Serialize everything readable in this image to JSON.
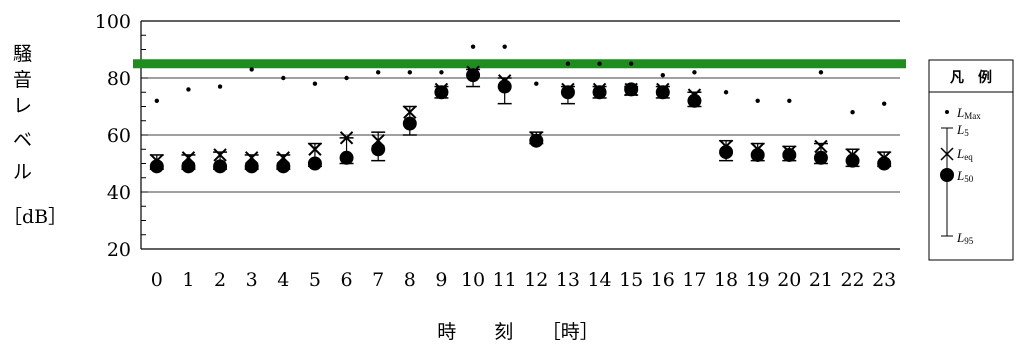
{
  "chart_data": {
    "type": "scatter",
    "title": "",
    "xlabel": "時　　刻　　［時］",
    "ylabel_chars": [
      "騒",
      "音",
      "レ",
      "ベ",
      "ル"
    ],
    "ylabel_unit": "［dB］",
    "ylim": [
      20,
      100
    ],
    "yticks": [
      "20",
      "40",
      "60",
      "80",
      "100"
    ],
    "categories": [
      "0",
      "1",
      "2",
      "3",
      "4",
      "5",
      "6",
      "7",
      "8",
      "9",
      "10",
      "11",
      "12",
      "13",
      "14",
      "15",
      "16",
      "17",
      "18",
      "19",
      "20",
      "21",
      "22",
      "23"
    ],
    "grid": true,
    "reference_line": {
      "value": 85,
      "color": "#1e8c1e"
    },
    "series": [
      {
        "name": "Lmax",
        "values": [
          72,
          76,
          77,
          83,
          80,
          78,
          80,
          82,
          82,
          82,
          91,
          91,
          78,
          85,
          85,
          85,
          81,
          82,
          75,
          72,
          72,
          82,
          68,
          71
        ]
      },
      {
        "name": "L5",
        "values": [
          53,
          53,
          54,
          53,
          53,
          57,
          59,
          61,
          70,
          77,
          83,
          80,
          61,
          77,
          77,
          77,
          77,
          75,
          58,
          57,
          56,
          57,
          55,
          54
        ]
      },
      {
        "name": "Leq",
        "values": [
          51,
          52,
          53,
          52,
          52,
          55,
          59,
          58,
          68,
          76,
          82,
          79,
          59,
          76,
          76,
          76,
          76,
          74,
          56,
          55,
          54,
          56,
          53,
          52
        ]
      },
      {
        "name": "L50",
        "values": [
          49,
          49,
          49,
          49,
          49,
          50,
          52,
          55,
          64,
          75,
          81,
          77,
          58,
          75,
          75,
          76,
          75,
          72,
          54,
          53,
          53,
          52,
          51,
          50
        ]
      },
      {
        "name": "L95",
        "values": [
          48,
          48,
          48,
          48,
          48,
          49,
          50,
          51,
          60,
          73,
          77,
          71,
          57,
          71,
          73,
          74,
          73,
          70,
          51,
          51,
          51,
          50,
          49,
          49
        ]
      }
    ]
  },
  "legend": {
    "title": "凡　例",
    "items": [
      {
        "main": "L",
        "sub": "Max"
      },
      {
        "main": "L",
        "sub": "5"
      },
      {
        "main": "L",
        "sub": "eq"
      },
      {
        "main": "L",
        "sub": "50"
      },
      {
        "main": "L",
        "sub": "95"
      }
    ]
  }
}
